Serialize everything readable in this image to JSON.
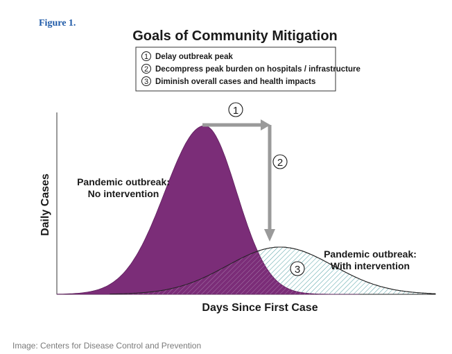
{
  "figure_label": "Figure 1.",
  "credit": "Image: Centers for Disease Control and Prevention",
  "colors": {
    "outbreak_fill": "#7b2d78",
    "intervention_hatch": "#5aa5a8",
    "arrow": "#9a9a9a",
    "axis": "#333333"
  },
  "chart_data": {
    "type": "area",
    "title": "Goals of Community Mitigation",
    "xlabel": "Days Since First Case",
    "ylabel": "Daily Cases",
    "x_range": [
      0,
      100
    ],
    "y_range": [
      0,
      100
    ],
    "legend": [
      {
        "num": "1",
        "text": "Delay outbreak peak"
      },
      {
        "num": "2",
        "text": "Decompress peak burden on hospitals / infrastructure"
      },
      {
        "num": "3",
        "text": "Diminish overall cases and health impacts"
      }
    ],
    "series": [
      {
        "name": "Pandemic outbreak: No intervention",
        "label_lines": [
          "Pandemic outbreak:",
          "No intervention"
        ],
        "peak_x": 39,
        "peak_y": 100,
        "spread": 8.5,
        "left_spread": 10.5
      },
      {
        "name": "Pandemic outbreak: With intervention",
        "label_lines": [
          "Pandemic outbreak:",
          "With intervention"
        ],
        "peak_x": 59,
        "peak_y": 28,
        "spread": 14
      }
    ],
    "annotations": [
      {
        "num": "1",
        "meaning": "Delay outbreak peak"
      },
      {
        "num": "2",
        "meaning": "Decompress peak burden"
      },
      {
        "num": "3",
        "meaning": "Diminish overall cases"
      }
    ]
  }
}
